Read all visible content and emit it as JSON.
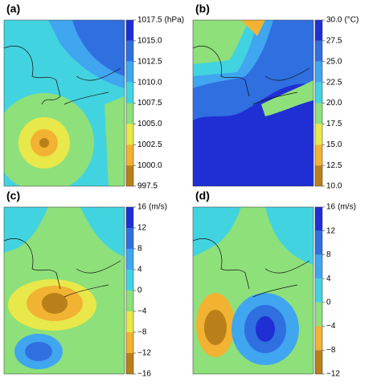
{
  "panels": [
    {
      "label": "(a)",
      "unit": "(hPa)",
      "ticks": [
        {
          "value": 1017.5,
          "label": "1017.5"
        },
        {
          "value": 1015.0,
          "label": "1015.0"
        },
        {
          "value": 1012.5,
          "label": "1012.5"
        },
        {
          "value": 1010.0,
          "label": "1010.0"
        },
        {
          "value": 1007.5,
          "label": "1007.5"
        },
        {
          "value": 1005.0,
          "label": "1005.0"
        },
        {
          "value": 1002.5,
          "label": "1002.5"
        },
        {
          "value": 1000.0,
          "label": "1000.0"
        },
        {
          "value": 997.5,
          "label": "997.5"
        }
      ],
      "colors": [
        "#1f2fd4",
        "#2f6fe0",
        "#3fa6ef",
        "#42d3e0",
        "#8ee07a",
        "#e8e84a",
        "#f2b232",
        "#b9801a"
      ]
    },
    {
      "label": "(b)",
      "unit": "(°C)",
      "ticks": [
        {
          "value": 30.0,
          "label": "30.0"
        },
        {
          "value": 27.5,
          "label": "27.5"
        },
        {
          "value": 25.0,
          "label": "25.0"
        },
        {
          "value": 22.5,
          "label": "22.5"
        },
        {
          "value": 20.0,
          "label": "20.0"
        },
        {
          "value": 17.5,
          "label": "17.5"
        },
        {
          "value": 15.0,
          "label": "15.0"
        },
        {
          "value": 12.5,
          "label": "12.5"
        },
        {
          "value": 10.0,
          "label": "10.0"
        }
      ],
      "colors": [
        "#1f2fd4",
        "#2f6fe0",
        "#3fa6ef",
        "#42d3e0",
        "#8ee07a",
        "#e8e84a",
        "#f2b232",
        "#b9801a"
      ]
    },
    {
      "label": "(c)",
      "unit": "(m/s)",
      "ticks": [
        16,
        12,
        8,
        4,
        0,
        {
          "value": -4,
          "label": "−4"
        },
        {
          "value": -8,
          "label": "−8"
        },
        {
          "value": -12,
          "label": "−12"
        },
        {
          "value": -16,
          "label": "−16"
        }
      ],
      "colors": [
        "#1f2fd4",
        "#2f6fe0",
        "#3fa6ef",
        "#42d3e0",
        "#8ee07a",
        "#e8e84a",
        "#f2b232",
        "#b9801a"
      ]
    },
    {
      "label": "(d)",
      "unit": "(m/s)",
      "ticks": [
        16,
        12,
        8,
        4,
        0,
        {
          "value": -4,
          "label": "−4"
        },
        {
          "value": -8,
          "label": "−8"
        },
        {
          "value": -12,
          "label": "−12"
        }
      ],
      "colors": [
        "#1f2fd4",
        "#2f6fe0",
        "#3fa6ef",
        "#42d3e0",
        "#8ee07a",
        "#f2b232",
        "#b9801a"
      ]
    }
  ]
}
